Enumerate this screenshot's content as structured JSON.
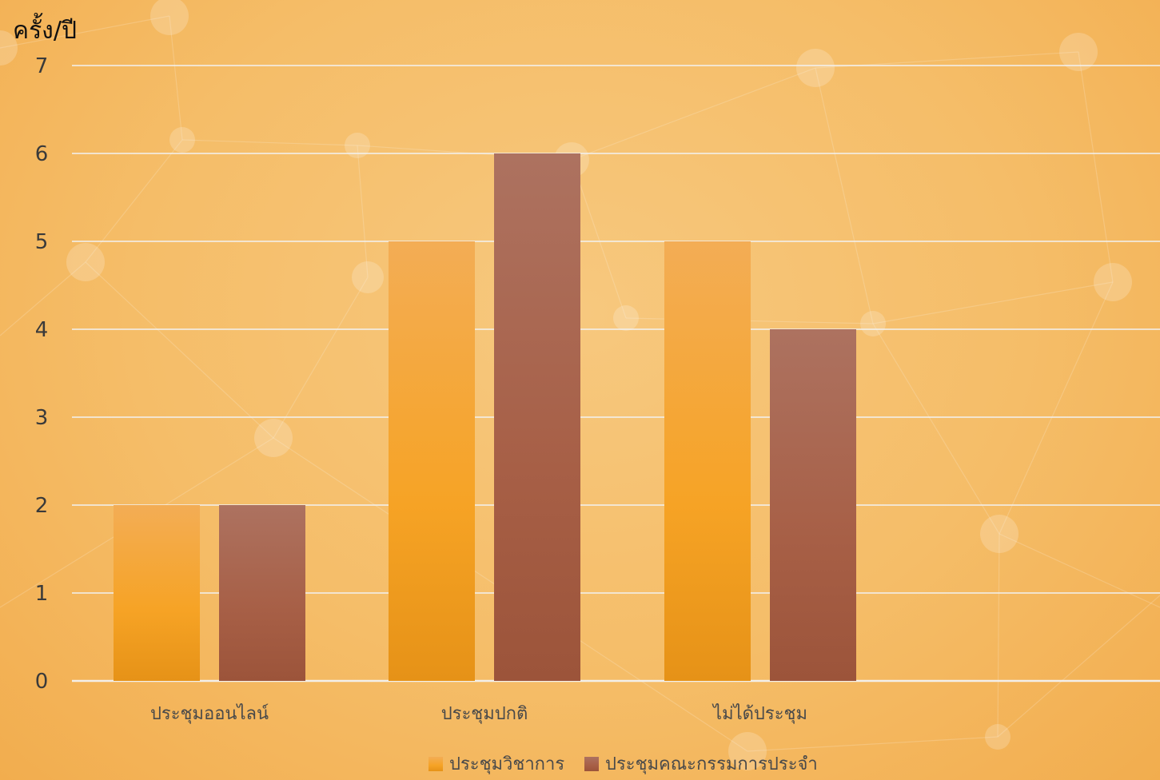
{
  "chart_data": {
    "type": "bar",
    "ylabel": "ครั้ง/ปี",
    "xlabel": "",
    "title": "",
    "ylim": [
      0,
      7
    ],
    "yticks": [
      0,
      1,
      2,
      3,
      4,
      5,
      6,
      7
    ],
    "grid": true,
    "legend_position": "bottom",
    "categories": [
      "ประชุมออนไลน์",
      "ประชุมปกติ",
      "ไม่ได้ประชุม"
    ],
    "series": [
      {
        "name": "ประชุมวิชาการ",
        "values": [
          2,
          5,
          5
        ],
        "color": "#f5a623"
      },
      {
        "name": "ประชุมคณะกรรมการประจำ",
        "values": [
          2,
          6,
          4
        ],
        "color": "#a65a40"
      }
    ]
  }
}
